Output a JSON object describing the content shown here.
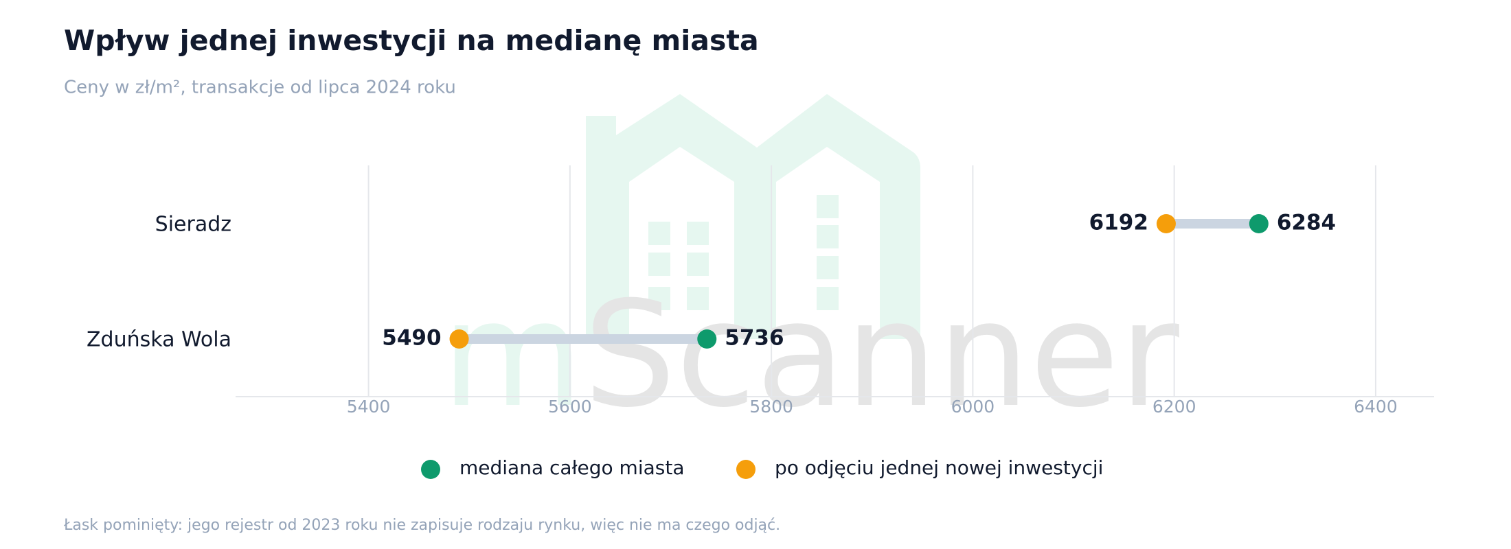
{
  "chart_data": {
    "type": "dumbbell",
    "title": "Wpływ jednej inwestycji na medianę miasta",
    "subtitle": "Ceny w zł/m², transakcje od lipca 2024 roku",
    "note": "Łask pominięty: jego rejestr od 2023 roku nie zapisuje rodzaju rynku, więc nie ma czego odjąć.",
    "watermark": {
      "prefix": "m",
      "name": "Scanner"
    },
    "categories": [
      "Sieradz",
      "Zduńska Wola"
    ],
    "series": [
      {
        "name": "mediana całego miasta",
        "color": "#0e9a6c",
        "values": [
          6284,
          5736
        ]
      },
      {
        "name": "po odjęciu jednej nowej inwestycji",
        "color": "#f59e0b",
        "values": [
          6192,
          5490
        ]
      }
    ],
    "xlim": [
      5268,
      6458
    ],
    "xticks": [
      5400,
      5600,
      5800,
      6000,
      6200,
      6400
    ],
    "grid": true
  }
}
